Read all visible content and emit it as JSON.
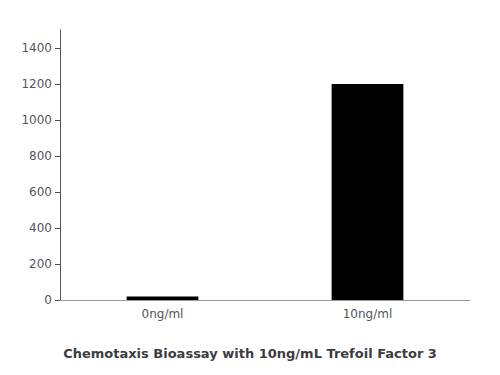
{
  "chart_data": {
    "type": "bar",
    "title": "Chemotaxis Bioassay with 10ng/mL Trefoil Factor 3",
    "categories": [
      "0ng/ml",
      "10ng/ml"
    ],
    "values": [
      20,
      1200
    ],
    "color": "#000000",
    "ylim": [
      0,
      1500
    ],
    "yticks": [
      0,
      200,
      400,
      600,
      800,
      1000,
      1200,
      1400
    ],
    "grid": false
  }
}
